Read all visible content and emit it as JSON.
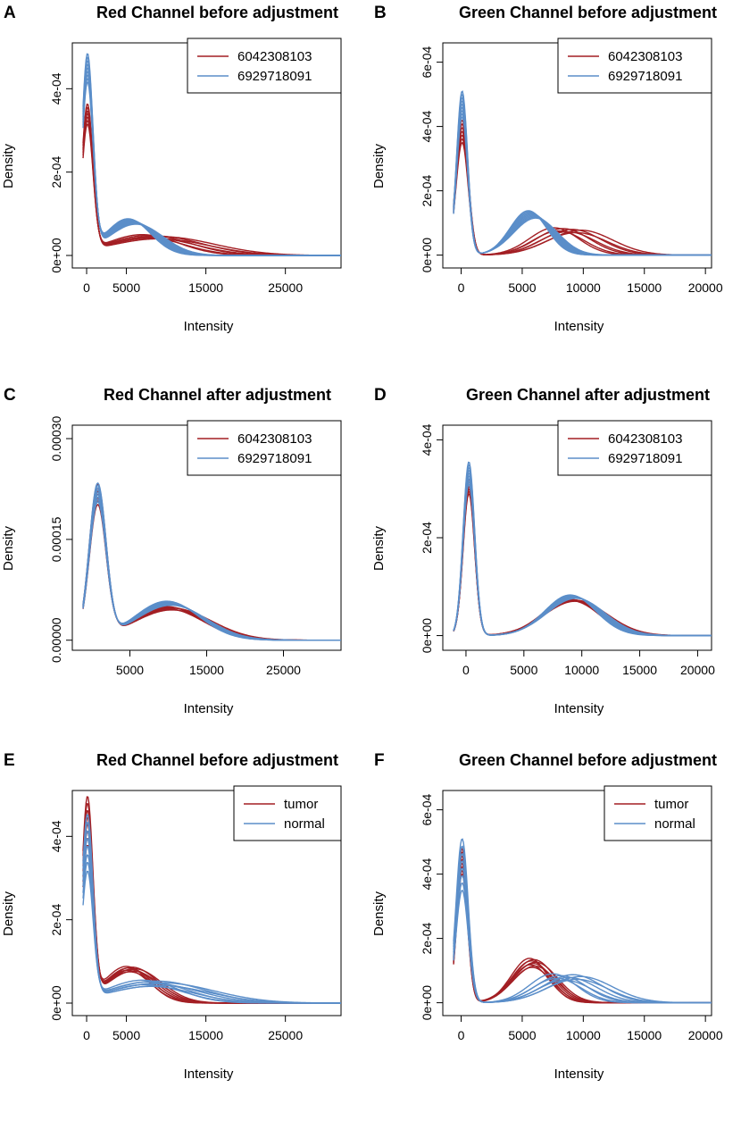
{
  "colors": {
    "red": "#a31f24",
    "blue": "#5b8ec9"
  },
  "chart_data": [
    {
      "letter": "A",
      "type": "line",
      "title": "Red Channel before adjustment",
      "xlabel": "Intensity",
      "ylabel": "Density",
      "xlim": [
        -1800,
        32000
      ],
      "ylim": [
        -3e-05,
        0.00051
      ],
      "xticks": [
        0,
        5000,
        15000,
        25000
      ],
      "yticks": [
        0,
        0.0002,
        0.0004
      ],
      "ytick_labels": [
        "0e+00",
        "2e-04",
        "4e-04"
      ],
      "legend": [
        {
          "name": "6042308103",
          "color": "#a31f24"
        },
        {
          "name": "6929718091",
          "color": "#5b8ec9"
        }
      ],
      "series": [
        {
          "color": "#a31f24",
          "count": 7,
          "peak_x": 100,
          "peak_width": 700,
          "peaks": [
            0.0003,
            0.00035
          ],
          "hump_x": [
            7000,
            9500
          ],
          "hump_width": [
            4500,
            6500
          ],
          "humps": [
            4e-05,
            5e-05
          ]
        },
        {
          "color": "#5b8ec9",
          "count": 9,
          "peak_x": 100,
          "peak_width": 700,
          "peaks": [
            0.0004,
            0.00047
          ],
          "hump_x": [
            5200,
            6200
          ],
          "hump_width": [
            2800,
            3400
          ],
          "humps": [
            7.5e-05,
            8.8e-05
          ]
        }
      ]
    },
    {
      "letter": "B",
      "type": "line",
      "title": "Green Channel before adjustment",
      "xlabel": "Intensity",
      "ylabel": "Density",
      "xlim": [
        -1500,
        20500
      ],
      "ylim": [
        -4e-05,
        0.00066
      ],
      "xticks": [
        0,
        5000,
        10000,
        15000,
        20000
      ],
      "yticks": [
        0,
        0.0002,
        0.0004,
        0.0006
      ],
      "ytick_labels": [
        "0e+00",
        "2e-04",
        "4e-04",
        "6e-04"
      ],
      "legend": [
        {
          "name": "6042308103",
          "color": "#a31f24"
        },
        {
          "name": "6929718091",
          "color": "#5b8ec9"
        }
      ],
      "series": [
        {
          "color": "#a31f24",
          "count": 7,
          "peak_x": 80,
          "peak_width": 500,
          "peaks": [
            0.00035,
            0.00042
          ],
          "hump_x": [
            7600,
            9800
          ],
          "hump_width": [
            2000,
            2600
          ],
          "humps": [
            7e-05,
            8.5e-05
          ]
        },
        {
          "color": "#5b8ec9",
          "count": 9,
          "peak_x": 80,
          "peak_width": 450,
          "peaks": [
            0.00043,
            0.00051
          ],
          "hump_x": [
            5500,
            6100
          ],
          "hump_width": [
            1500,
            1800
          ],
          "humps": [
            0.000115,
            0.000138
          ]
        }
      ]
    },
    {
      "letter": "C",
      "type": "line",
      "title": "Red Channel after adjustment",
      "xlabel": "Intensity",
      "ylabel": "Density",
      "xlim": [
        -2500,
        32500
      ],
      "ylim": [
        -1.5e-05,
        0.00032
      ],
      "xticks": [
        5000,
        15000,
        25000
      ],
      "yticks": [
        0,
        0.00015,
        0.0003
      ],
      "ytick_labels": [
        "0.00000",
        "0.00015",
        "0.00030"
      ],
      "legend": [
        {
          "name": "6042308103",
          "color": "#a31f24"
        },
        {
          "name": "6929718091",
          "color": "#5b8ec9"
        }
      ],
      "series": [
        {
          "color": "#a31f24",
          "count": 7,
          "peak_x": 800,
          "peak_width": 1100,
          "peaks": [
            0.000195,
            0.000225
          ],
          "hump_x": [
            9800,
            10600
          ],
          "hump_width": [
            4500,
            5000
          ],
          "humps": [
            4.5e-05,
            5e-05
          ]
        },
        {
          "color": "#5b8ec9",
          "count": 9,
          "peak_x": 800,
          "peak_width": 1100,
          "peaks": [
            0.0002,
            0.000228
          ],
          "hump_x": [
            9800,
            10400
          ],
          "hump_width": [
            4200,
            4600
          ],
          "humps": [
            5.2e-05,
            5.8e-05
          ]
        }
      ]
    },
    {
      "letter": "D",
      "type": "line",
      "title": "Green Channel after adjustment",
      "xlabel": "Intensity",
      "ylabel": "Density",
      "xlim": [
        -2000,
        21200
      ],
      "ylim": [
        -3e-05,
        0.00043
      ],
      "xticks": [
        0,
        5000,
        10000,
        15000,
        20000
      ],
      "yticks": [
        0,
        0.0002,
        0.0004
      ],
      "ytick_labels": [
        "0e+00",
        "2e-04",
        "4e-04"
      ],
      "legend": [
        {
          "name": "6042308103",
          "color": "#a31f24"
        },
        {
          "name": "6929718091",
          "color": "#5b8ec9"
        }
      ],
      "series": [
        {
          "color": "#a31f24",
          "count": 7,
          "peak_x": 250,
          "peak_width": 500,
          "peaks": [
            0.00029,
            0.00032
          ],
          "hump_x": [
            9000,
            9500
          ],
          "hump_width": [
            2400,
            2700
          ],
          "humps": [
            7e-05,
            7.4e-05
          ]
        },
        {
          "color": "#5b8ec9",
          "count": 9,
          "peak_x": 250,
          "peak_width": 500,
          "peaks": [
            0.00031,
            0.000355
          ],
          "hump_x": [
            9000,
            9500
          ],
          "hump_width": [
            2200,
            2500
          ],
          "humps": [
            7.6e-05,
            8.3e-05
          ]
        }
      ]
    },
    {
      "letter": "E",
      "type": "line",
      "title": "Red Channel before adjustment",
      "xlabel": "Intensity",
      "ylabel": "Density",
      "xlim": [
        -1800,
        32000
      ],
      "ylim": [
        -3e-05,
        0.00051
      ],
      "xticks": [
        0,
        5000,
        15000,
        25000
      ],
      "yticks": [
        0,
        0.0002,
        0.0004
      ],
      "ytick_labels": [
        "0e+00",
        "2e-04",
        "4e-04"
      ],
      "legend": [
        {
          "name": "tumor",
          "color": "#a31f24"
        },
        {
          "name": "normal",
          "color": "#5b8ec9"
        }
      ],
      "series": [
        {
          "color": "#a31f24",
          "count": 8,
          "peak_x": 100,
          "peak_width": 700,
          "peaks": [
            0.00036,
            0.00048
          ],
          "hump_x": [
            5000,
            6000
          ],
          "hump_width": [
            2800,
            3400
          ],
          "humps": [
            7.5e-05,
            8.8e-05
          ]
        },
        {
          "color": "#5b8ec9",
          "count": 8,
          "peak_x": 100,
          "peak_width": 700,
          "peaks": [
            0.0003,
            0.00044
          ],
          "hump_x": [
            7000,
            9500
          ],
          "hump_width": [
            4500,
            6500
          ],
          "humps": [
            4e-05,
            5.5e-05
          ]
        }
      ]
    },
    {
      "letter": "F",
      "type": "line",
      "title": "Green Channel before adjustment",
      "xlabel": "Intensity",
      "ylabel": "Density",
      "xlim": [
        -1500,
        20500
      ],
      "ylim": [
        -4e-05,
        0.00066
      ],
      "xticks": [
        0,
        5000,
        10000,
        15000,
        20000
      ],
      "yticks": [
        0,
        0.0002,
        0.0004,
        0.0006
      ],
      "ytick_labels": [
        "0e+00",
        "2e-04",
        "4e-04",
        "6e-04"
      ],
      "legend": [
        {
          "name": "tumor",
          "color": "#a31f24"
        },
        {
          "name": "normal",
          "color": "#5b8ec9"
        }
      ],
      "series": [
        {
          "color": "#a31f24",
          "count": 8,
          "peak_x": 80,
          "peak_width": 450,
          "peaks": [
            0.0004,
            0.00048
          ],
          "hump_x": [
            5600,
            6100
          ],
          "hump_width": [
            1500,
            1800
          ],
          "humps": [
            0.00011,
            0.000138
          ]
        },
        {
          "color": "#5b8ec9",
          "count": 8,
          "peak_x": 80,
          "peak_width": 500,
          "peaks": [
            0.00035,
            0.00051
          ],
          "hump_x": [
            7500,
            9800
          ],
          "hump_width": [
            1900,
            2600
          ],
          "humps": [
            7e-05,
            9e-05
          ]
        }
      ]
    }
  ]
}
